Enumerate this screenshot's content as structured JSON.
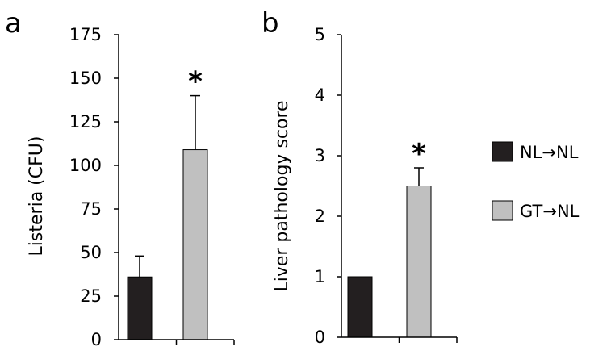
{
  "legend": {
    "position": "right",
    "items": [
      {
        "label": "NL→NL",
        "color": "#231f20"
      },
      {
        "label": "GT→NL",
        "color": "#c0c0c0"
      }
    ]
  },
  "chart_data": [
    {
      "type": "bar",
      "panel": "a",
      "categories": [
        "NL→NL",
        "GT→NL"
      ],
      "values": [
        36,
        109
      ],
      "errors": [
        12,
        31
      ],
      "colors": [
        "#231f20",
        "#c0c0c0"
      ],
      "significance": [
        "",
        "*"
      ],
      "ylabel": "Listeria (CFU)",
      "ylim": [
        0,
        175
      ],
      "yticks": [
        0,
        25,
        50,
        75,
        100,
        125,
        150,
        175
      ],
      "grid": false
    },
    {
      "type": "bar",
      "panel": "b",
      "categories": [
        "NL→NL",
        "GT→NL"
      ],
      "values": [
        1.0,
        2.5
      ],
      "errors": [
        0,
        0.3
      ],
      "colors": [
        "#231f20",
        "#c0c0c0"
      ],
      "significance": [
        "",
        "*"
      ],
      "ylabel": "Liver pathology score",
      "ylim": [
        0,
        5
      ],
      "yticks": [
        0,
        1,
        2,
        3,
        4,
        5
      ],
      "grid": false
    }
  ]
}
